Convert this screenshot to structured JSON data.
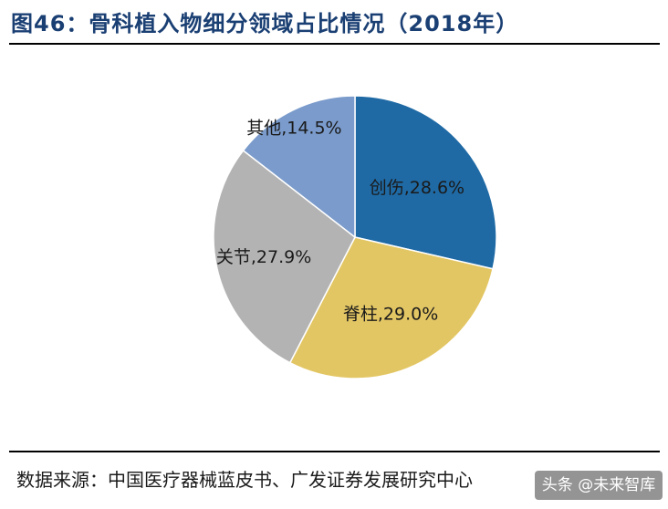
{
  "header": {
    "title": "图46：骨科植入物细分领域占比情况（2018年）"
  },
  "footer": {
    "source": "数据来源：中国医疗器械蓝皮书、广发证券发展研究中心",
    "watermark": "头条 @未来智库"
  },
  "chart_data": {
    "type": "pie",
    "title": "",
    "slices": [
      {
        "name": "创伤",
        "value": 28.6,
        "label": "创伤,28.6%",
        "color": "#1f6aa5"
      },
      {
        "name": "脊柱",
        "value": 29.0,
        "label": "脊柱,29.0%",
        "color": "#e3c664"
      },
      {
        "name": "关节",
        "value": 27.9,
        "label": "关节,27.9%",
        "color": "#b3b3b3"
      },
      {
        "name": "其他",
        "value": 14.5,
        "label": "其他,14.5%",
        "color": "#7a9bcb"
      }
    ],
    "legend": "none",
    "label_placement": "on-slices"
  }
}
